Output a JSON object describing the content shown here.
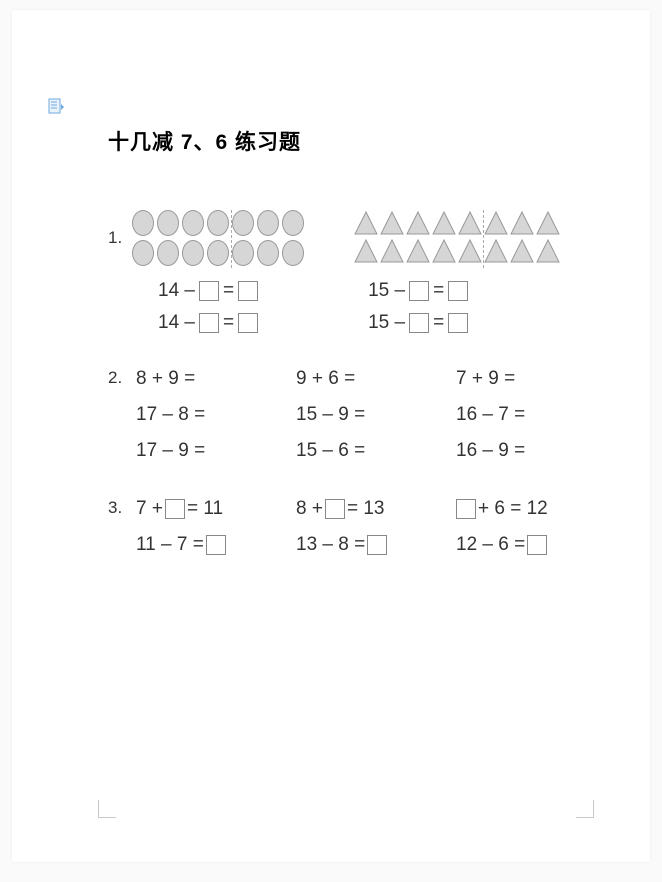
{
  "title": "十几减 7、6 练习题",
  "q1": {
    "number": "1.",
    "ovals_per_row": 7,
    "oval_rows": 2,
    "oval_dash_after": 4,
    "triangles_per_row": 8,
    "triangle_rows": 2,
    "triangle_dash_after": 5,
    "oval_fill": "#d6d6d6",
    "oval_stroke": "#999999",
    "triangle_fill": "#d6d6d6",
    "triangle_stroke": "#999999",
    "eq_left_1_a": "14 –",
    "eq_left_1_b": "=",
    "eq_left_2_a": "14 –",
    "eq_left_2_b": "=",
    "eq_right_1_a": "15 –",
    "eq_right_1_b": "=",
    "eq_right_2_a": "15 –",
    "eq_right_2_b": "="
  },
  "q2": {
    "number": "2.",
    "cols": [
      [
        "8 + 9 =",
        "17 – 8 =",
        "17 – 9 ="
      ],
      [
        "9 + 6 =",
        "15 – 9 =",
        "15 – 6 ="
      ],
      [
        "7 + 9 =",
        "16 – 7 =",
        "16 – 9 ="
      ]
    ]
  },
  "q3": {
    "number": "3.",
    "rows": [
      [
        {
          "pre": "7 +",
          "mid": "= 11",
          "hasBoxPre": false,
          "hasBoxMid": true,
          "hasBoxEnd": false
        },
        {
          "pre": "8 +",
          "mid": "= 13",
          "hasBoxPre": false,
          "hasBoxMid": true,
          "hasBoxEnd": false
        },
        {
          "pre": "",
          "mid": "+ 6 = 12",
          "hasBoxPre": true,
          "hasBoxMid": false,
          "hasBoxEnd": false
        }
      ],
      [
        {
          "pre": "11 – 7 =",
          "mid": "",
          "hasBoxPre": false,
          "hasBoxMid": false,
          "hasBoxEnd": true
        },
        {
          "pre": "13 – 8 =",
          "mid": "",
          "hasBoxPre": false,
          "hasBoxMid": false,
          "hasBoxEnd": true
        },
        {
          "pre": "12 – 6 =",
          "mid": "",
          "hasBoxPre": false,
          "hasBoxMid": false,
          "hasBoxEnd": true
        }
      ]
    ]
  },
  "colors": {
    "page_bg": "#ffffff",
    "body_bg": "#fafafa",
    "text": "#333333",
    "box_border": "#888888",
    "dash": "#aaaaaa"
  }
}
